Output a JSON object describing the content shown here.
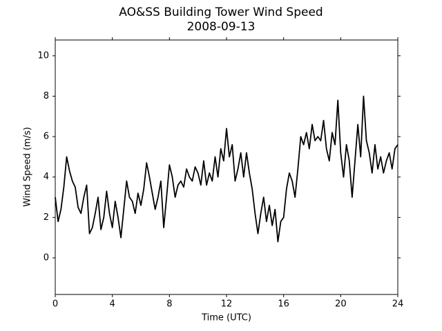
{
  "chart_data": {
    "type": "line",
    "title": "AO&SS Building Tower Wind Speed",
    "subtitle": "2008-09-13",
    "xlabel": "Time (UTC)",
    "ylabel": "Wind Speed (m/s)",
    "xlim": [
      0,
      24
    ],
    "xticks": [
      0,
      4,
      8,
      12,
      16,
      20,
      24
    ],
    "ylim": [
      -1.81,
      10.78
    ],
    "yticks": [
      0,
      2,
      4,
      6,
      8,
      10
    ],
    "grid": false,
    "x": [
      0.0,
      0.2,
      0.4,
      0.6,
      0.8,
      1.0,
      1.2,
      1.4,
      1.6,
      1.8,
      2.0,
      2.2,
      2.4,
      2.6,
      2.8,
      3.0,
      3.2,
      3.4,
      3.6,
      3.8,
      4.0,
      4.2,
      4.4,
      4.6,
      4.8,
      5.0,
      5.2,
      5.4,
      5.6,
      5.8,
      6.0,
      6.2,
      6.4,
      6.6,
      6.8,
      7.0,
      7.2,
      7.4,
      7.6,
      7.8,
      8.0,
      8.2,
      8.4,
      8.6,
      8.8,
      9.0,
      9.2,
      9.4,
      9.6,
      9.8,
      10.0,
      10.2,
      10.4,
      10.6,
      10.8,
      11.0,
      11.2,
      11.4,
      11.6,
      11.8,
      12.0,
      12.2,
      12.4,
      12.6,
      12.8,
      13.0,
      13.2,
      13.4,
      13.6,
      13.8,
      14.0,
      14.2,
      14.4,
      14.6,
      14.8,
      15.0,
      15.2,
      15.4,
      15.6,
      15.8,
      16.0,
      16.2,
      16.4,
      16.6,
      16.8,
      17.0,
      17.2,
      17.4,
      17.6,
      17.8,
      18.0,
      18.2,
      18.4,
      18.6,
      18.8,
      19.0,
      19.2,
      19.4,
      19.6,
      19.8,
      20.0,
      20.2,
      20.4,
      20.6,
      20.8,
      21.0,
      21.2,
      21.4,
      21.6,
      21.8,
      22.0,
      22.2,
      22.4,
      22.6,
      22.8,
      23.0,
      23.2,
      23.4,
      23.6,
      23.8,
      24.0
    ],
    "series": [
      {
        "color": "#000000",
        "values": [
          3.0,
          1.8,
          2.4,
          3.5,
          5.0,
          4.3,
          3.8,
          3.5,
          2.5,
          2.2,
          3.0,
          3.6,
          1.2,
          1.5,
          2.2,
          3.0,
          1.4,
          2.0,
          3.3,
          2.2,
          1.5,
          2.8,
          2.0,
          1.0,
          2.4,
          3.8,
          3.0,
          2.8,
          2.2,
          3.2,
          2.6,
          3.4,
          4.7,
          4.0,
          3.2,
          2.4,
          3.0,
          3.8,
          1.5,
          3.0,
          4.6,
          4.0,
          3.0,
          3.6,
          3.8,
          3.5,
          4.4,
          4.0,
          3.8,
          4.5,
          4.2,
          3.6,
          4.8,
          3.6,
          4.2,
          3.8,
          5.0,
          4.0,
          5.4,
          4.8,
          6.4,
          5.0,
          5.6,
          3.8,
          4.4,
          5.2,
          4.0,
          5.2,
          4.2,
          3.4,
          2.2,
          1.2,
          2.2,
          3.0,
          1.8,
          2.6,
          1.6,
          2.4,
          0.8,
          1.8,
          2.0,
          3.4,
          4.2,
          3.8,
          3.0,
          4.4,
          6.0,
          5.6,
          6.2,
          5.4,
          6.6,
          5.8,
          6.0,
          5.8,
          6.8,
          5.4,
          4.8,
          6.2,
          5.6,
          7.8,
          5.2,
          4.0,
          5.6,
          4.8,
          3.0,
          4.8,
          6.6,
          5.0,
          8.0,
          5.8,
          5.2,
          4.2,
          5.6,
          4.4,
          5.0,
          4.2,
          4.8,
          5.2,
          4.4,
          5.4,
          5.6
        ]
      }
    ]
  }
}
